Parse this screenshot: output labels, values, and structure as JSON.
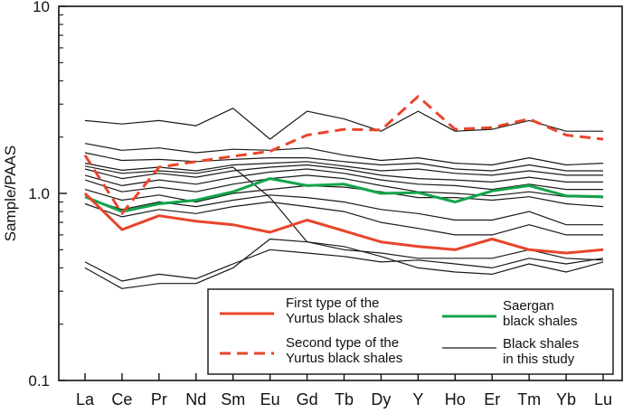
{
  "chart_data": {
    "type": "line",
    "ylabel": "Sample/PAAS",
    "yscale": "log",
    "ylim": [
      0.1,
      10
    ],
    "y_ticks": [
      "10",
      "1.0",
      "0.1"
    ],
    "categories": [
      "La",
      "Ce",
      "Pr",
      "Nd",
      "Sm",
      "Eu",
      "Gd",
      "Tb",
      "Dy",
      "Y",
      "Ho",
      "Er",
      "Tm",
      "Yb",
      "Lu"
    ],
    "grid": false,
    "legend_position": "bottom-right, inside plot",
    "colors": {
      "first_type": "#e8452b",
      "second_type": "#e8452b",
      "saergan": "#13a44a",
      "this_study": "#1a1a1a"
    },
    "series": [
      {
        "name": "First type of the Yurtus black shales",
        "style": "solid-red",
        "values": [
          1.0,
          0.64,
          0.76,
          0.71,
          0.68,
          0.62,
          0.72,
          0.63,
          0.55,
          0.52,
          0.5,
          0.57,
          0.5,
          0.48,
          0.5
        ]
      },
      {
        "name": "Second type of the Yurtus black shales",
        "style": "dashed-red",
        "values": [
          1.6,
          0.78,
          1.38,
          1.48,
          1.58,
          1.68,
          2.05,
          2.2,
          2.18,
          3.3,
          2.2,
          2.25,
          2.5,
          2.05,
          1.95
        ]
      },
      {
        "name": "Saergan black shales",
        "style": "solid-green",
        "values": [
          0.96,
          0.8,
          0.88,
          0.92,
          1.02,
          1.2,
          1.1,
          1.12,
          1.0,
          1.01,
          0.9,
          1.03,
          1.1,
          0.97,
          0.96
        ]
      },
      {
        "name": "Black shales in this study",
        "style": "solid-black",
        "lines": [
          [
            2.45,
            2.35,
            2.45,
            2.3,
            2.85,
            1.95,
            2.75,
            2.5,
            2.15,
            2.75,
            2.15,
            2.2,
            2.45,
            2.15,
            2.15
          ],
          [
            1.85,
            1.7,
            1.75,
            1.65,
            1.72,
            1.7,
            1.75,
            1.6,
            1.5,
            1.55,
            1.45,
            1.42,
            1.55,
            1.42,
            1.45
          ],
          [
            1.65,
            1.5,
            1.52,
            1.48,
            1.52,
            1.55,
            1.55,
            1.48,
            1.42,
            1.45,
            1.35,
            1.32,
            1.42,
            1.32,
            1.32
          ],
          [
            1.45,
            1.33,
            1.38,
            1.32,
            1.42,
            1.45,
            1.48,
            1.4,
            1.32,
            1.35,
            1.28,
            1.25,
            1.32,
            1.25,
            1.25
          ],
          [
            1.35,
            1.2,
            1.28,
            1.22,
            1.32,
            1.38,
            1.42,
            1.35,
            1.25,
            1.2,
            1.18,
            1.15,
            1.22,
            1.15,
            1.15
          ],
          [
            1.25,
            1.1,
            1.18,
            1.12,
            1.22,
            1.3,
            1.35,
            1.28,
            1.18,
            1.12,
            1.1,
            1.05,
            1.12,
            1.05,
            1.05
          ],
          [
            1.18,
            1.02,
            1.08,
            1.02,
            1.12,
            1.2,
            1.25,
            1.2,
            1.1,
            1.02,
            1.0,
            0.97,
            1.02,
            0.96,
            0.95
          ],
          [
            1.05,
            0.92,
            0.98,
            0.9,
            1.0,
            1.05,
            1.1,
            1.08,
            1.02,
            0.95,
            0.95,
            0.92,
            0.96,
            0.88,
            0.85
          ],
          [
            0.95,
            0.82,
            0.9,
            0.85,
            0.92,
            0.98,
            0.95,
            0.9,
            0.82,
            0.78,
            0.72,
            0.72,
            0.8,
            0.68,
            0.68
          ],
          [
            0.88,
            0.75,
            0.82,
            0.78,
            0.85,
            0.9,
            0.85,
            0.8,
            0.7,
            0.65,
            0.6,
            0.6,
            0.68,
            0.6,
            0.6
          ],
          [
            1.4,
            1.28,
            1.32,
            1.28,
            1.38,
            0.95,
            0.55,
            0.5,
            0.48,
            0.45,
            0.45,
            0.45,
            0.5,
            0.45,
            0.44
          ],
          [
            0.43,
            0.34,
            0.37,
            0.35,
            0.42,
            0.5,
            0.48,
            0.46,
            0.43,
            0.44,
            0.42,
            0.4,
            0.45,
            0.42,
            0.45
          ],
          [
            0.4,
            0.31,
            0.33,
            0.33,
            0.4,
            0.57,
            0.55,
            0.52,
            0.46,
            0.4,
            0.38,
            0.37,
            0.42,
            0.38,
            0.43
          ]
        ]
      }
    ],
    "legend": [
      {
        "label_line1": "First type of the",
        "label_line2": "Yurtus black shales"
      },
      {
        "label_line1": "Second  type of the",
        "label_line2": "Yurtus black shales"
      },
      {
        "label_line1": "Saergan",
        "label_line2": "black shales"
      },
      {
        "label_line1": "Black shales",
        "label_line2": "in this study"
      }
    ]
  }
}
